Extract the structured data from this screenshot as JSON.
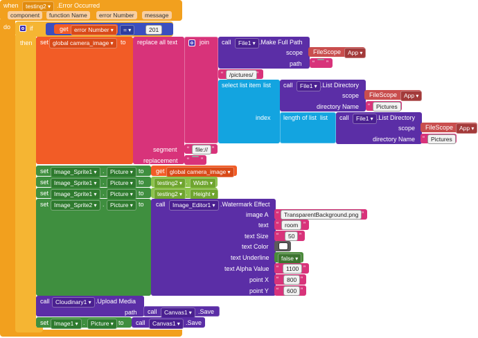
{
  "event": {
    "when": "when",
    "component": "testing2",
    "event_name": ".Error Occurred",
    "params": [
      "component",
      "function Name",
      "error Number",
      "message"
    ],
    "do": "do"
  },
  "if_block": {
    "if": "if",
    "then": "then",
    "get": "get",
    "var": "error Number",
    "op": "=",
    "value": "201"
  },
  "set_global": {
    "set": "set",
    "var": "global camera_image",
    "to": "to",
    "replace": "replace all text",
    "segment": "segment",
    "replacement": "replacement",
    "segment_value": "file://",
    "replacement_value": ""
  },
  "join": {
    "label": "join",
    "call": "call",
    "component": "File1",
    "method": ".Make Full Path",
    "scope": "scope",
    "scope_value": "FileScope",
    "scope_option": "App",
    "path": "path",
    "path_value": "",
    "pictures": "/pictures/"
  },
  "select_list": {
    "label": "select list item",
    "list": "list",
    "index": "index",
    "call": "call",
    "component": "File1",
    "method": ".List Directory",
    "scope": "scope",
    "scope_value": "FileScope",
    "scope_option": "App",
    "dir": "directory Name",
    "dir_value": "Pictures",
    "length_label": "length of list",
    "length_list": "list",
    "call2": "call",
    "component2": "File1",
    "method2": ".List Directory",
    "scope2": "scope",
    "scope2_value": "FileScope",
    "scope2_option": "App",
    "dir2": "directory Name",
    "dir2_value": "Pictures"
  },
  "sets": [
    {
      "set": "set",
      "comp": "Image_Sprite1",
      "dot": ".",
      "prop": "Picture",
      "to": "to",
      "value_prefix": "get",
      "value": "global camera_image"
    },
    {
      "set": "set",
      "comp": "Image_Sprite1",
      "dot": ".",
      "prop": "Picture",
      "to": "to",
      "value": "testing2",
      "value_dot": ".",
      "value_prop": "Width"
    },
    {
      "set": "set",
      "comp": "Image_Sprite1",
      "dot": ".",
      "prop": "Picture",
      "to": "to",
      "value": "testing2",
      "value_dot": ".",
      "value_prop": "Height"
    },
    {
      "set": "set",
      "comp": "Image_Sprite2",
      "dot": ".",
      "prop": "Picture",
      "to": "to"
    }
  ],
  "watermark": {
    "call": "call",
    "component": "Image_Editor1",
    "method": ".Watermark Effect",
    "params": [
      {
        "label": "image A",
        "value": "TransparentBackground.png"
      },
      {
        "label": "text",
        "value": "room"
      },
      {
        "label": "text Size",
        "value": "50"
      },
      {
        "label": "text Color",
        "value": ""
      },
      {
        "label": "text Underline",
        "value": "false"
      },
      {
        "label": "text Alpha Value",
        "value": "1100"
      },
      {
        "label": "point X",
        "value": "800"
      },
      {
        "label": "point Y",
        "value": "600"
      }
    ]
  },
  "cloudinary": {
    "call": "call",
    "component": "Cloudinary1",
    "method": ".Upload Media",
    "path": "path",
    "inner_call": "call",
    "inner_component": "Canvas1",
    "inner_method": ".Save"
  },
  "last_set": {
    "set": "set",
    "comp": "Image1",
    "dot": ".",
    "prop": "Picture",
    "to": "to",
    "call": "call",
    "component": "Canvas1",
    "method": ".Save"
  },
  "colors": {
    "event": "#f2a01e",
    "control": "#f5b533",
    "variable": "#f25c26",
    "text": "#d8337a",
    "lists": "#13a4e0",
    "math": "#3b4fbf",
    "component": "#5b2ea6",
    "set": "#3f8f3f",
    "getter": "#8bc34a",
    "dropdown": "#c94e4e"
  }
}
